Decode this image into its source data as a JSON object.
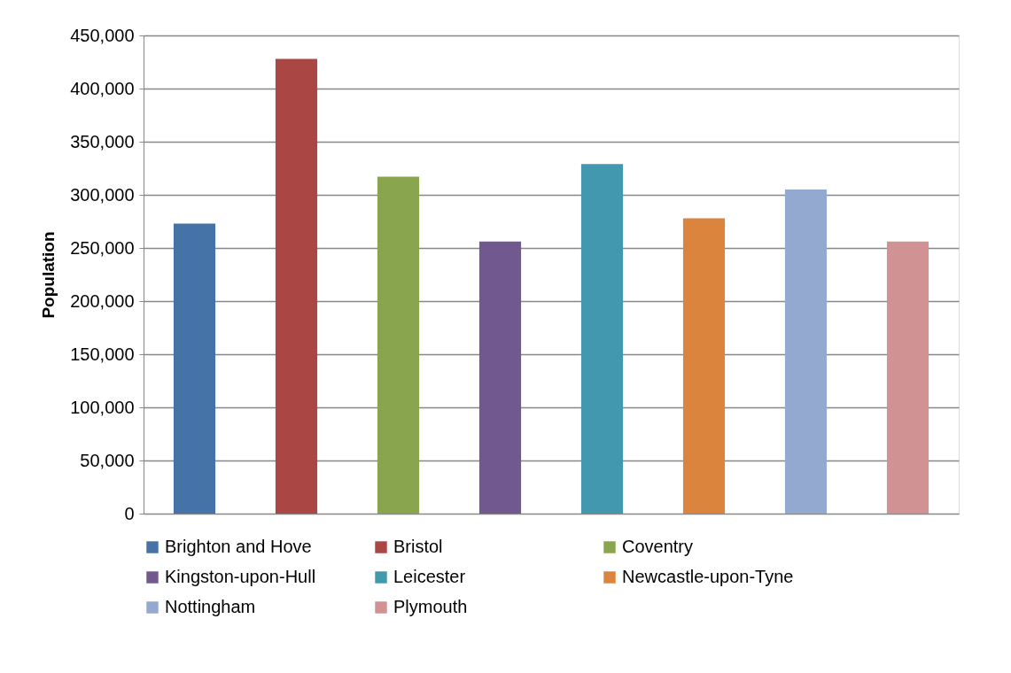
{
  "chart_data": {
    "type": "bar",
    "ylabel": "Population",
    "categories": [
      null
    ],
    "series": [
      {
        "name": "Brighton and Hove",
        "color": "#4572a7",
        "values": [
          273000
        ]
      },
      {
        "name": "Bristol",
        "color": "#aa4643",
        "values": [
          428000
        ]
      },
      {
        "name": "Coventry",
        "color": "#89a54e",
        "values": [
          317000
        ]
      },
      {
        "name": "Kingston-upon-Hull",
        "color": "#71588f",
        "values": [
          256000
        ]
      },
      {
        "name": "Leicester",
        "color": "#4198af",
        "values": [
          329000
        ]
      },
      {
        "name": "Newcastle-upon-Tyne",
        "color": "#db843d",
        "values": [
          278000
        ]
      },
      {
        "name": "Nottingham",
        "color": "#93a9cf",
        "values": [
          305000
        ]
      },
      {
        "name": "Plymouth",
        "color": "#d09293",
        "values": [
          256000
        ]
      }
    ],
    "ylim": [
      0,
      450000
    ],
    "yticks": [
      0,
      {
        "value": 50000,
        "label": "50,000"
      },
      {
        "value": 100000,
        "label": "100,000"
      },
      {
        "value": 150000,
        "label": "150,000"
      },
      {
        "value": 200000,
        "label": "200,000"
      },
      {
        "value": 250000,
        "label": "250,000"
      },
      {
        "value": 300000,
        "label": "300,000"
      },
      {
        "value": 350000,
        "label": "350,000"
      },
      {
        "value": 400000,
        "label": "400,000"
      },
      {
        "value": 450000,
        "label": "450,000"
      }
    ],
    "grid": "y",
    "legend": "bottom",
    "tick_labels": "y"
  }
}
